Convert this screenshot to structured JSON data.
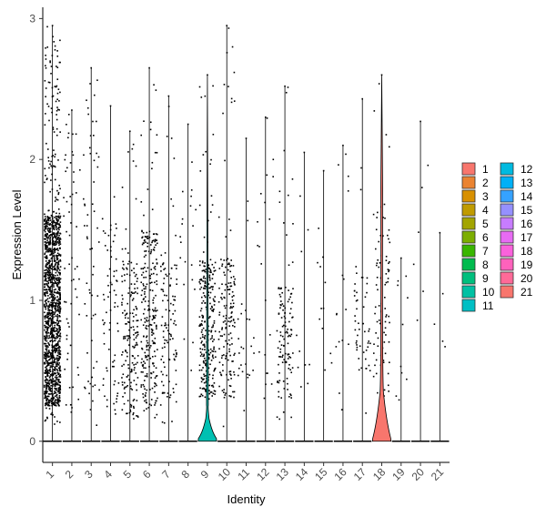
{
  "chart_data": {
    "type": "violin",
    "xlabel": "Identity",
    "ylabel": "Expression Level",
    "ylim": [
      -0.15,
      3.08
    ],
    "yticks": [
      "0",
      "1",
      "2",
      "3"
    ],
    "categories": [
      "1",
      "2",
      "3",
      "4",
      "5",
      "6",
      "7",
      "8",
      "9",
      "10",
      "11",
      "12",
      "13",
      "14",
      "15",
      "16",
      "17",
      "18",
      "19",
      "20",
      "21"
    ],
    "colors": [
      "#F8766D",
      "#E7851E",
      "#D09400",
      "#B2A100",
      "#89AC00",
      "#45B500",
      "#00BC51",
      "#00C087",
      "#00C0B2",
      "#00BCD6",
      "#00B3F2",
      "#29A3FF",
      "#9C8DFF",
      "#D277FF",
      "#F166E8",
      "#FF61C7",
      "#FF689E",
      "#F8766D",
      "#E7851E",
      "#D09400",
      "#B2A100"
    ],
    "legend_colors": [
      "#F8766D",
      "#EA8331",
      "#D89000",
      "#C09B00",
      "#A3A500",
      "#7CAE00",
      "#39B600",
      "#00BB4E",
      "#00BF7D",
      "#00C1A3",
      "#00BFC4",
      "#00BAE0",
      "#00B0F6",
      "#35A2FF",
      "#9590FF",
      "#C77CFF",
      "#E76BF3",
      "#FA62DB",
      "#FF62BC",
      "#FF6A98",
      "#F8766D"
    ],
    "legend_position": "right",
    "legend_entries": [
      "1",
      "2",
      "3",
      "4",
      "5",
      "6",
      "7",
      "8",
      "9",
      "10",
      "11",
      "12",
      "13",
      "14",
      "15",
      "16",
      "17",
      "18",
      "19",
      "20",
      "21"
    ],
    "groups": [
      {
        "name": "1",
        "max": 2.95,
        "points": 1400,
        "dense_lo": 0.25,
        "dense_hi": 1.6
      },
      {
        "name": "2",
        "max": 2.35,
        "points": 60,
        "dense_lo": 0.2,
        "dense_hi": 2.3
      },
      {
        "name": "3",
        "max": 2.65,
        "points": 60,
        "dense_lo": 0.2,
        "dense_hi": 2.6
      },
      {
        "name": "4",
        "max": 2.38,
        "points": 70,
        "dense_lo": 0.2,
        "dense_hi": 1.6
      },
      {
        "name": "5",
        "max": 2.2,
        "points": 180,
        "dense_lo": 0.15,
        "dense_hi": 1.3
      },
      {
        "name": "6",
        "max": 2.65,
        "points": 260,
        "dense_lo": 0.25,
        "dense_hi": 1.5
      },
      {
        "name": "7",
        "max": 2.45,
        "points": 110,
        "dense_lo": 0.25,
        "dense_hi": 1.3
      },
      {
        "name": "8",
        "max": 2.25,
        "points": 20,
        "dense_lo": 0.3,
        "dense_hi": 2.0
      },
      {
        "name": "9",
        "max": 2.6,
        "points": 280,
        "dense_lo": 0.3,
        "dense_hi": 1.3,
        "violin_peak": 0.16,
        "violin_width": 0.55
      },
      {
        "name": "10",
        "max": 2.95,
        "points": 160,
        "dense_lo": 0.3,
        "dense_hi": 1.3
      },
      {
        "name": "11",
        "max": 2.15,
        "points": 25,
        "dense_lo": 0.45,
        "dense_hi": 1.0
      },
      {
        "name": "12",
        "max": 2.3,
        "points": 20,
        "dense_lo": 0.3,
        "dense_hi": 2.0
      },
      {
        "name": "13",
        "max": 2.52,
        "points": 120,
        "dense_lo": 0.3,
        "dense_hi": 1.1
      },
      {
        "name": "14",
        "max": 2.05,
        "points": 10,
        "dense_lo": 0.3,
        "dense_hi": 1.8
      },
      {
        "name": "15",
        "max": 1.92,
        "points": 12,
        "dense_lo": 0.5,
        "dense_hi": 1.4
      },
      {
        "name": "16",
        "max": 2.1,
        "points": 15,
        "dense_lo": 0.3,
        "dense_hi": 2.0
      },
      {
        "name": "17",
        "max": 2.43,
        "points": 50,
        "dense_lo": 0.5,
        "dense_hi": 1.2
      },
      {
        "name": "18",
        "max": 2.6,
        "points": 90,
        "dense_lo": 0.3,
        "dense_hi": 1.6,
        "violin_peak": 0.35,
        "violin_width": 0.6,
        "violin_upper": 1.8
      },
      {
        "name": "19",
        "max": 1.3,
        "points": 10,
        "dense_lo": 0.3,
        "dense_hi": 1.2
      },
      {
        "name": "20",
        "max": 2.27,
        "points": 6,
        "dense_lo": 0.8,
        "dense_hi": 2.2
      },
      {
        "name": "21",
        "max": 1.48,
        "points": 4,
        "dense_lo": 0.5,
        "dense_hi": 1.4
      }
    ]
  }
}
